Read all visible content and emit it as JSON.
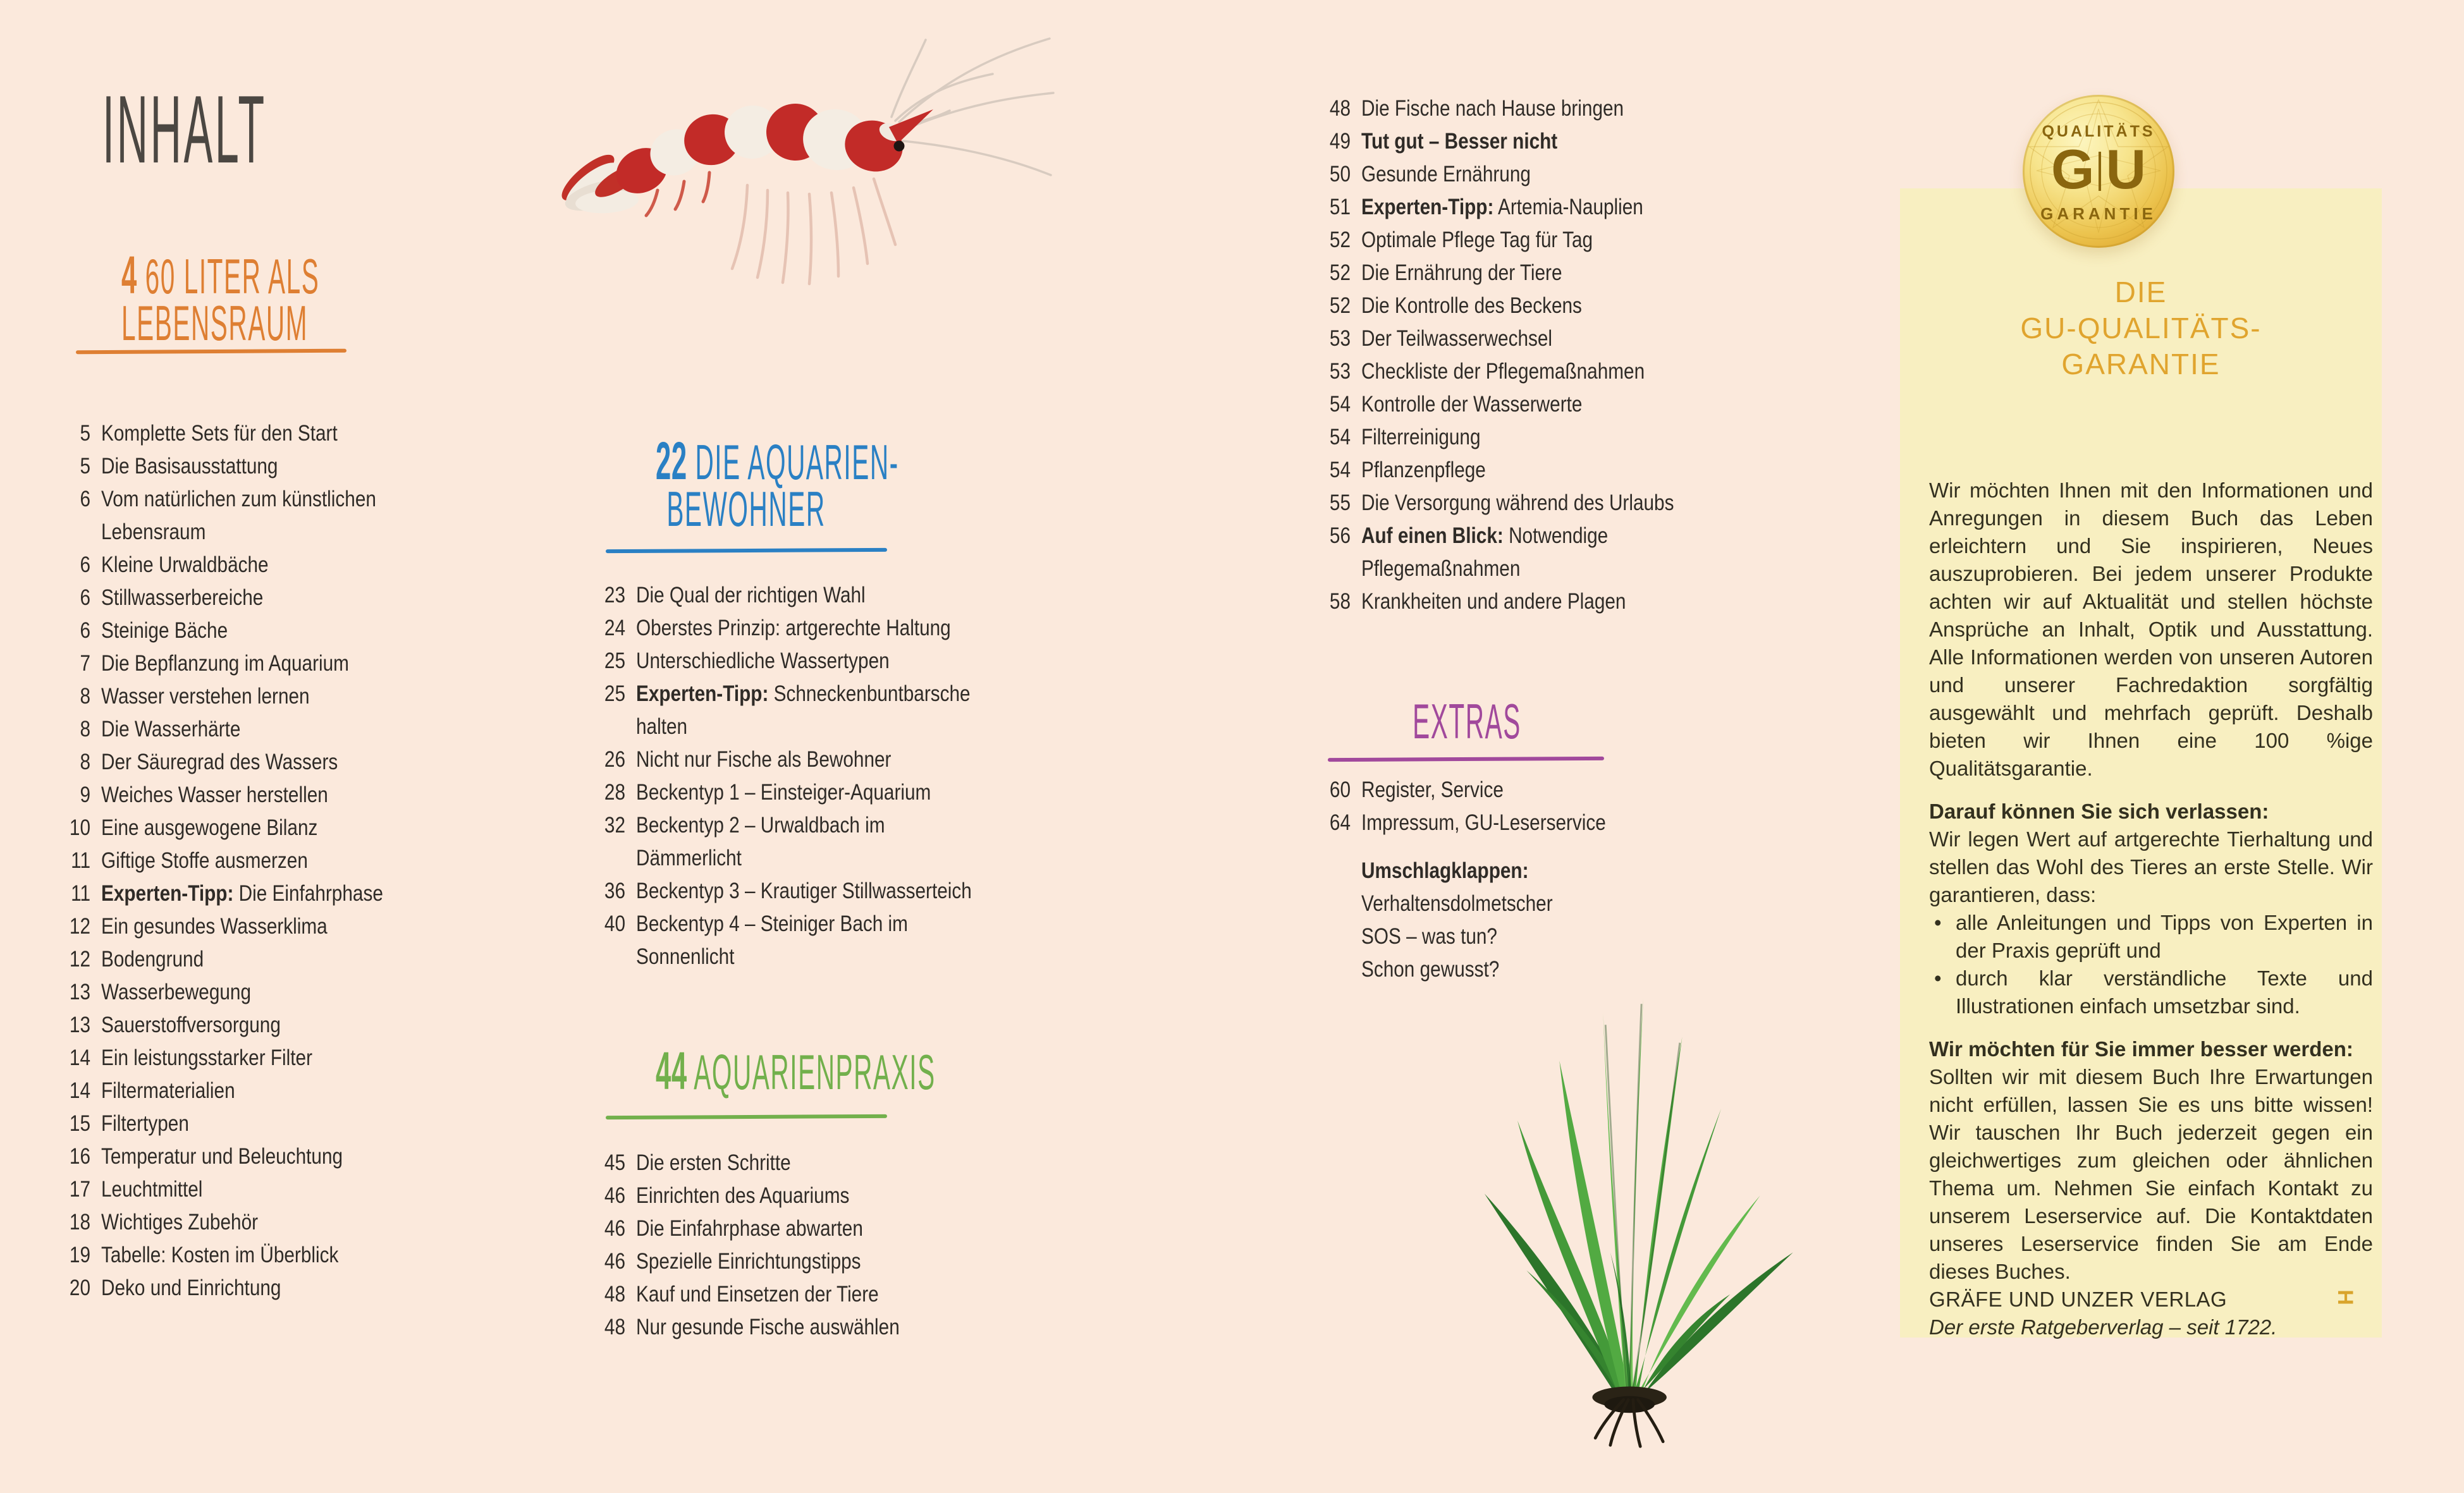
{
  "page": {
    "title": "INHALT"
  },
  "colors": {
    "background": "#fbe9dc",
    "panel_yellow": "#f8efc1",
    "chapter_orange": "#de7f33",
    "chapter_blue": "#2a80c4",
    "chapter_green": "#72b04c",
    "chapter_purple": "#a1499c",
    "panel_gold": "#e0a42e",
    "seal_text_gold": "#8a660f",
    "body_text": "#2f2b27",
    "title_gray": "#4b4742"
  },
  "images": {
    "shrimp": "crystal-red-shrimp-photo",
    "plant": "java-fern-photo"
  },
  "columns": {
    "col1": {
      "heading": {
        "number": "4",
        "line1": "60 LITER ALS",
        "line2": "LEBENSRAUM"
      },
      "items": [
        {
          "page": "5",
          "text": "Komplette Sets für den Start"
        },
        {
          "page": "5",
          "text": "Die Basisausstattung"
        },
        {
          "page": "6",
          "text": "Vom natürlichen zum künstlichen",
          "text2": "Lebensraum"
        },
        {
          "page": "6",
          "text": "Kleine Urwaldbäche"
        },
        {
          "page": "6",
          "text": "Stillwasserbereiche"
        },
        {
          "page": "6",
          "text": "Steinige Bäche"
        },
        {
          "page": "7",
          "text": "Die Bepflanzung im Aquarium"
        },
        {
          "page": "8",
          "text": "Wasser verstehen lernen"
        },
        {
          "page": "8",
          "text": "Die Wasserhärte"
        },
        {
          "page": "8",
          "text": "Der Säuregrad des Wassers"
        },
        {
          "page": "9",
          "text": "Weiches Wasser herstellen"
        },
        {
          "page": "10",
          "text": "Eine ausgewogene Bilanz"
        },
        {
          "page": "11",
          "text": "Giftige Stoffe ausmerzen"
        },
        {
          "page": "11",
          "bold": "Experten-Tipp:",
          "text": "Die Einfahrphase"
        },
        {
          "page": "12",
          "text": "Ein gesundes Wasserklima"
        },
        {
          "page": "12",
          "text": "Bodengrund"
        },
        {
          "page": "13",
          "text": "Wasserbewegung"
        },
        {
          "page": "13",
          "text": "Sauerstoffversorgung"
        },
        {
          "page": "14",
          "text": "Ein leistungsstarker Filter"
        },
        {
          "page": "14",
          "text": "Filtermaterialien"
        },
        {
          "page": "15",
          "text": "Filtertypen"
        },
        {
          "page": "16",
          "text": "Temperatur und Beleuchtung"
        },
        {
          "page": "17",
          "text": "Leuchtmittel"
        },
        {
          "page": "18",
          "text": "Wichtiges Zubehör"
        },
        {
          "page": "19",
          "text": "Tabelle: Kosten im Überblick"
        },
        {
          "page": "20",
          "text": "Deko und Einrichtung"
        }
      ]
    },
    "col2": {
      "heading1": {
        "number": "22",
        "line1": "DIE AQUARIEN-",
        "line2": "BEWOHNER"
      },
      "items1": [
        {
          "page": "23",
          "text": "Die Qual der richtigen Wahl"
        },
        {
          "page": "24",
          "text": "Oberstes Prinzip: artgerechte Haltung"
        },
        {
          "page": "25",
          "text": "Unterschiedliche Wassertypen"
        },
        {
          "page": "25",
          "bold": "Experten-Tipp:",
          "text": "Schneckenbuntbarsche",
          "text2": "halten"
        },
        {
          "page": "26",
          "text": "Nicht nur Fische als Bewohner"
        },
        {
          "page": "28",
          "text": "Beckentyp 1 – Einsteiger-Aquarium"
        },
        {
          "page": "32",
          "text": "Beckentyp 2 – Urwaldbach im",
          "text2": "Dämmerlicht"
        },
        {
          "page": "36",
          "text": "Beckentyp 3 – Krautiger Stillwasserteich"
        },
        {
          "page": "40",
          "text": "Beckentyp 4 – Steiniger Bach im",
          "text2": "Sonnenlicht"
        }
      ],
      "heading2": {
        "number": "44",
        "line1": "AQUARIENPRAXIS"
      },
      "items2": [
        {
          "page": "45",
          "text": "Die ersten Schritte"
        },
        {
          "page": "46",
          "text": "Einrichten des Aquariums"
        },
        {
          "page": "46",
          "text": "Die Einfahrphase abwarten"
        },
        {
          "page": "46",
          "text": "Spezielle Einrichtungstipps"
        },
        {
          "page": "48",
          "text": "Kauf und Einsetzen der Tiere"
        },
        {
          "page": "48",
          "text": "Nur gesunde Fische auswählen"
        }
      ]
    },
    "col3": {
      "items": [
        {
          "page": "48",
          "text": "Die Fische nach Hause bringen"
        },
        {
          "page": "49",
          "bold": "Tut gut – Besser nicht"
        },
        {
          "page": "50",
          "text": "Gesunde Ernährung"
        },
        {
          "page": "51",
          "bold": "Experten-Tipp:",
          "text": "Artemia-Nauplien"
        },
        {
          "page": "52",
          "text": "Optimale Pflege Tag für Tag"
        },
        {
          "page": "52",
          "text": "Die Ernährung der Tiere"
        },
        {
          "page": "52",
          "text": "Die Kontrolle des Beckens"
        },
        {
          "page": "53",
          "text": "Der Teilwasserwechsel"
        },
        {
          "page": "53",
          "text": "Checkliste der Pflegemaßnahmen"
        },
        {
          "page": "54",
          "text": "Kontrolle der Wasserwerte"
        },
        {
          "page": "54",
          "text": "Filterreinigung"
        },
        {
          "page": "54",
          "text": "Pflanzenpflege"
        },
        {
          "page": "55",
          "text": "Die Versorgung während des Urlaubs"
        },
        {
          "page": "56",
          "bold": "Auf einen Blick:",
          "text": "Notwendige",
          "text2": "Pflegemaßnahmen"
        },
        {
          "page": "58",
          "text": "Krankheiten und andere Plagen"
        }
      ],
      "extras": {
        "heading": {
          "line1": "EXTRAS"
        },
        "items": [
          {
            "page": "60",
            "text": "Register, Service"
          },
          {
            "page": "64",
            "text": "Impressum, GU-Leserservice"
          },
          {
            "page": "",
            "bold": "Umschlagklappen:",
            "gap": true
          },
          {
            "page": "",
            "text": "Verhaltensdolmetscher"
          },
          {
            "page": "",
            "text": "SOS – was tun?"
          },
          {
            "page": "",
            "text": "Schon gewusst?"
          }
        ]
      }
    }
  },
  "panel": {
    "seal": {
      "top": "QUALITÄTS",
      "g": "G",
      "u": "U",
      "bottom": "GARANTIE"
    },
    "heading_lines": [
      "DIE",
      "GU-QUALITÄTS-",
      "GARANTIE"
    ],
    "para1": "Wir möchten Ihnen mit den Informationen und Anregungen in diesem Buch das Leben erleichtern und Sie inspirieren, Neues auszuprobieren. Bei jedem unserer Produkte achten wir auf Aktualität und stellen höchste Ansprüche an Inhalt, Optik und Ausstattung. Alle Informationen werden von unseren Autoren und unserer Fachredaktion sorgfältig ausgewählt und mehrfach geprüft. Deshalb bieten wir Ihnen eine 100 %ige Qualitätsgarantie.",
    "sub1": "Darauf können Sie sich verlassen:",
    "para2": "Wir legen Wert auf artgerechte Tierhaltung und stellen das Wohl des Tieres an erste Stelle. Wir garantieren, dass:",
    "bullets": [
      "alle Anleitungen und Tipps von Experten in der Praxis geprüft und",
      "durch klar verständliche Texte und Illustrationen einfach umsetzbar sind."
    ],
    "sub2": "Wir möchten für Sie immer besser werden:",
    "para3": "Sollten wir mit diesem Buch Ihre Erwartungen nicht erfüllen, lassen Sie es uns bitte wissen! Wir tauschen Ihr Buch jederzeit gegen ein gleichwertiges zum gleichen oder ähnlichen Thema um. Nehmen Sie einfach Kontakt zu unserem Leserservice auf. Die Kontaktdaten unseres Leserservice finden Sie am Ende dieses Buches.",
    "publisher": "GRÄFE UND UNZER VERLAG",
    "tagline": "Der erste Ratgeberverlag – seit 1722.",
    "mark": "H"
  }
}
